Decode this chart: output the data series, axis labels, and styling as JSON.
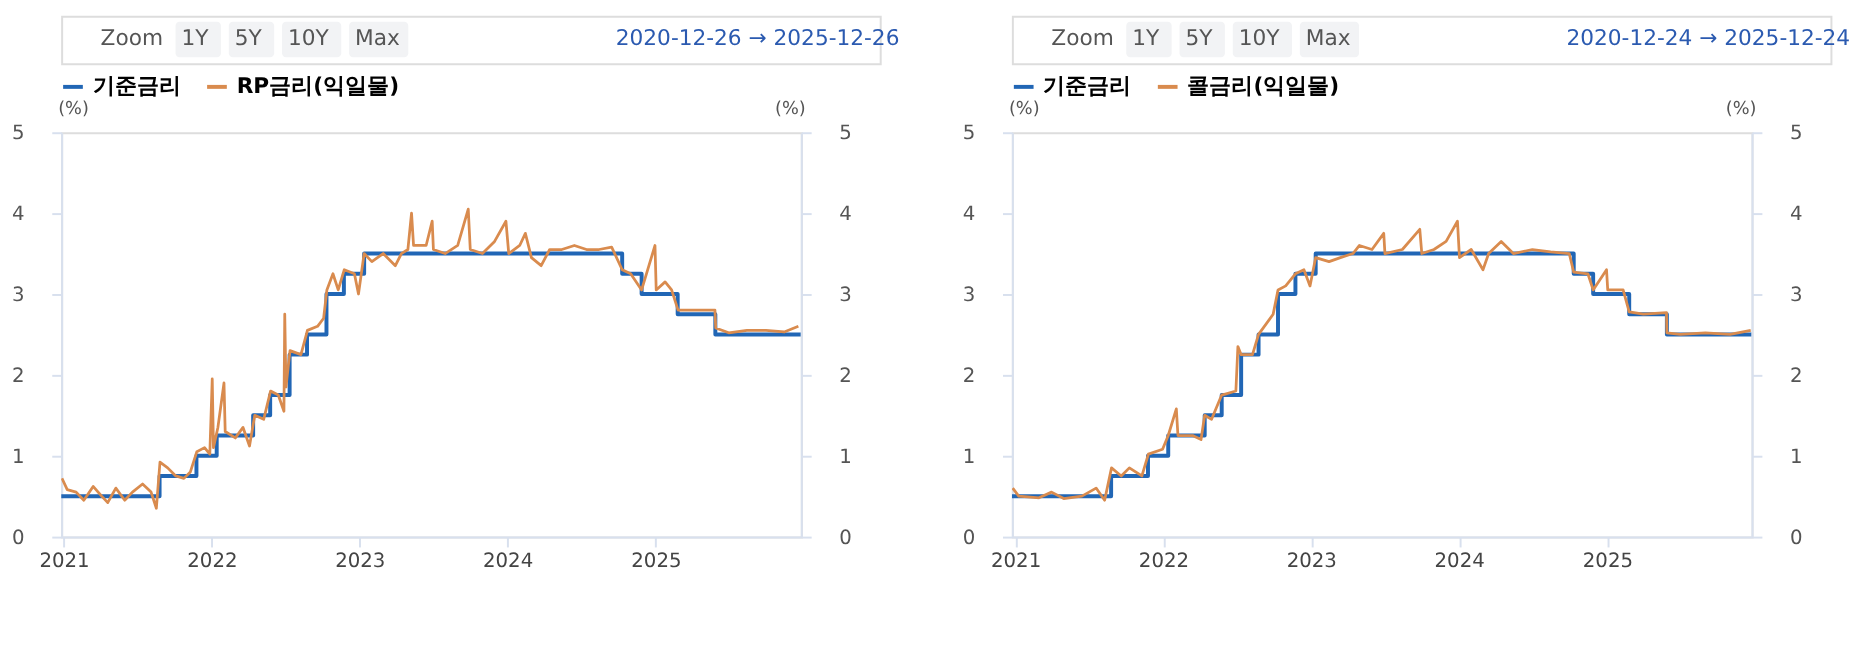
{
  "chart_data": [
    {
      "type": "line",
      "annotations": [
        "Zoom",
        "1Y",
        "5Y",
        "10Y",
        "Max",
        "2020-12-26 → 2025-12-26"
      ],
      "ylabel": "(%)",
      "y2label": "(%)",
      "xlim": [
        "2020-12-26",
        "2025-12-26"
      ],
      "xticks": [
        {
          "value": "2021-01-01",
          "label": "2021"
        },
        {
          "value": "2022-01-01",
          "label": "2022"
        },
        {
          "value": "2023-01-01",
          "label": "2023"
        },
        {
          "value": "2024-01-01",
          "label": "2024"
        },
        {
          "value": "2025-01-01",
          "label": "2025"
        }
      ],
      "ylim": [
        0,
        5
      ],
      "yticks": [
        0,
        1,
        2,
        3,
        4,
        5
      ],
      "y2lim": [
        0,
        5
      ],
      "y2ticks": [
        0,
        1,
        2,
        3,
        4,
        5
      ],
      "grid": false,
      "legend": "top",
      "marker": "none",
      "line_style": "solid",
      "series": [
        {
          "name": "기준금리",
          "type": "step",
          "color": "#2166b5",
          "x": [
            "2020-12-26",
            "2021-08-26",
            "2021-11-25",
            "2022-01-14",
            "2022-04-14",
            "2022-05-26",
            "2022-07-13",
            "2022-08-25",
            "2022-10-12",
            "2022-11-24",
            "2023-01-13",
            "2024-10-11",
            "2024-11-28",
            "2025-02-25",
            "2025-05-29",
            "2025-12-26"
          ],
          "values": [
            0.5,
            0.75,
            1.0,
            1.25,
            1.5,
            1.75,
            2.25,
            2.5,
            3.0,
            3.25,
            3.5,
            3.25,
            3.0,
            2.75,
            2.5,
            2.5
          ]
        },
        {
          "name": "RP금리(익일물)",
          "color": "#d98b4e",
          "x": [
            "2020-12-28",
            "2021-01-10",
            "2021-02-01",
            "2021-02-20",
            "2021-03-15",
            "2021-04-05",
            "2021-04-20",
            "2021-05-10",
            "2021-06-01",
            "2021-06-20",
            "2021-07-15",
            "2021-08-05",
            "2021-08-18",
            "2021-08-27",
            "2021-09-15",
            "2021-10-05",
            "2021-10-25",
            "2021-11-10",
            "2021-11-26",
            "2021-12-15",
            "2021-12-28",
            "2022-01-03",
            "2022-01-06",
            "2022-01-17",
            "2022-02-01",
            "2022-02-04",
            "2022-03-01",
            "2022-03-20",
            "2022-04-05",
            "2022-04-18",
            "2022-05-10",
            "2022-05-27",
            "2022-06-15",
            "2022-06-29",
            "2022-07-01",
            "2022-07-04",
            "2022-07-14",
            "2022-08-10",
            "2022-08-26",
            "2022-09-20",
            "2022-10-05",
            "2022-10-13",
            "2022-10-28",
            "2022-11-10",
            "2022-11-25",
            "2022-12-20",
            "2022-12-30",
            "2023-01-13",
            "2023-02-01",
            "2023-03-01",
            "2023-03-31",
            "2023-04-15",
            "2023-05-01",
            "2023-05-10",
            "2023-05-15",
            "2023-06-15",
            "2023-06-30",
            "2023-07-03",
            "2023-08-01",
            "2023-09-01",
            "2023-09-27",
            "2023-10-02",
            "2023-11-01",
            "2023-12-01",
            "2023-12-29",
            "2024-01-05",
            "2024-02-01",
            "2024-02-15",
            "2024-03-01",
            "2024-03-25",
            "2024-04-15",
            "2024-05-15",
            "2024-06-15",
            "2024-07-15",
            "2024-08-15",
            "2024-09-15",
            "2024-10-11",
            "2024-11-01",
            "2024-11-28",
            "2024-12-31",
            "2025-01-03",
            "2025-01-25",
            "2025-02-10",
            "2025-02-26",
            "2025-04-01",
            "2025-05-28",
            "2025-05-30",
            "2025-07-01",
            "2025-08-15",
            "2025-10-01",
            "2025-11-15",
            "2025-12-20"
          ],
          "values": [
            0.72,
            0.58,
            0.55,
            0.45,
            0.62,
            0.5,
            0.42,
            0.6,
            0.45,
            0.55,
            0.65,
            0.55,
            0.35,
            0.92,
            0.85,
            0.75,
            0.72,
            0.8,
            1.05,
            1.1,
            1.02,
            1.95,
            1.1,
            1.35,
            1.9,
            1.3,
            1.22,
            1.35,
            1.12,
            1.5,
            1.45,
            1.8,
            1.75,
            1.55,
            2.75,
            1.85,
            2.3,
            2.25,
            2.55,
            2.6,
            2.7,
            3.05,
            3.25,
            3.05,
            3.3,
            3.25,
            3.0,
            3.5,
            3.4,
            3.5,
            3.35,
            3.5,
            3.55,
            4.0,
            3.6,
            3.6,
            3.9,
            3.55,
            3.5,
            3.6,
            4.05,
            3.55,
            3.5,
            3.65,
            3.9,
            3.5,
            3.6,
            3.75,
            3.45,
            3.35,
            3.55,
            3.55,
            3.6,
            3.55,
            3.55,
            3.58,
            3.3,
            3.25,
            3.05,
            3.6,
            3.05,
            3.15,
            3.05,
            2.8,
            2.8,
            2.8,
            2.58,
            2.52,
            2.55,
            2.55,
            2.53,
            2.6
          ]
        }
      ]
    },
    {
      "type": "line",
      "annotations": [
        "Zoom",
        "1Y",
        "5Y",
        "10Y",
        "Max",
        "2020-12-24 → 2025-12-24"
      ],
      "ylabel": "(%)",
      "y2label": "(%)",
      "xlim": [
        "2020-12-24",
        "2025-12-24"
      ],
      "xticks": [
        {
          "value": "2021-01-01",
          "label": "2021"
        },
        {
          "value": "2022-01-01",
          "label": "2022"
        },
        {
          "value": "2023-01-01",
          "label": "2023"
        },
        {
          "value": "2024-01-01",
          "label": "2024"
        },
        {
          "value": "2025-01-01",
          "label": "2025"
        }
      ],
      "ylim": [
        0,
        5
      ],
      "yticks": [
        0,
        1,
        2,
        3,
        4,
        5
      ],
      "y2lim": [
        0,
        5
      ],
      "y2ticks": [
        0,
        1,
        2,
        3,
        4,
        5
      ],
      "grid": false,
      "legend": "top",
      "marker": "none",
      "line_style": "solid",
      "series": [
        {
          "name": "기준금리",
          "type": "step",
          "color": "#2166b5",
          "x": [
            "2020-12-24",
            "2021-08-26",
            "2021-11-25",
            "2022-01-14",
            "2022-04-14",
            "2022-05-26",
            "2022-07-13",
            "2022-08-25",
            "2022-10-12",
            "2022-11-24",
            "2023-01-13",
            "2024-10-11",
            "2024-11-28",
            "2025-02-25",
            "2025-05-29",
            "2025-12-24"
          ],
          "values": [
            0.5,
            0.75,
            1.0,
            1.25,
            1.5,
            1.75,
            2.25,
            2.5,
            3.0,
            3.25,
            3.5,
            3.25,
            3.0,
            2.75,
            2.5,
            2.5
          ]
        },
        {
          "name": "콜금리(익일물)",
          "color": "#d98b4e",
          "x": [
            "2020-12-26",
            "2021-01-10",
            "2021-03-01",
            "2021-04-01",
            "2021-05-01",
            "2021-06-15",
            "2021-07-20",
            "2021-08-10",
            "2021-08-27",
            "2021-09-20",
            "2021-10-10",
            "2021-11-10",
            "2021-11-26",
            "2021-12-31",
            "2022-01-14",
            "2022-02-03",
            "2022-02-07",
            "2022-03-15",
            "2022-04-05",
            "2022-04-14",
            "2022-05-01",
            "2022-05-26",
            "2022-06-30",
            "2022-07-05",
            "2022-07-13",
            "2022-08-10",
            "2022-08-25",
            "2022-09-30",
            "2022-10-12",
            "2022-10-31",
            "2022-11-24",
            "2022-12-15",
            "2022-12-30",
            "2023-01-13",
            "2023-02-15",
            "2023-03-15",
            "2023-04-15",
            "2023-05-01",
            "2023-06-01",
            "2023-06-30",
            "2023-07-03",
            "2023-08-15",
            "2023-09-27",
            "2023-10-02",
            "2023-11-01",
            "2023-12-01",
            "2023-12-29",
            "2024-01-03",
            "2024-02-01",
            "2024-03-01",
            "2024-03-15",
            "2024-04-15",
            "2024-05-15",
            "2024-07-01",
            "2024-08-15",
            "2024-09-30",
            "2024-10-11",
            "2024-11-15",
            "2024-11-28",
            "2024-12-31",
            "2025-01-03",
            "2025-02-10",
            "2025-02-25",
            "2025-04-01",
            "2025-05-28",
            "2025-05-29",
            "2025-07-01",
            "2025-09-01",
            "2025-11-01",
            "2025-12-22"
          ],
          "values": [
            0.6,
            0.5,
            0.48,
            0.55,
            0.47,
            0.5,
            0.6,
            0.45,
            0.85,
            0.75,
            0.85,
            0.75,
            1.02,
            1.08,
            1.25,
            1.58,
            1.25,
            1.25,
            1.2,
            1.5,
            1.45,
            1.75,
            1.8,
            2.35,
            2.25,
            2.25,
            2.5,
            2.75,
            3.05,
            3.1,
            3.25,
            3.3,
            3.1,
            3.45,
            3.4,
            3.45,
            3.5,
            3.6,
            3.55,
            3.75,
            3.5,
            3.55,
            3.8,
            3.5,
            3.55,
            3.65,
            3.9,
            3.45,
            3.55,
            3.3,
            3.5,
            3.65,
            3.5,
            3.55,
            3.52,
            3.5,
            3.27,
            3.25,
            3.05,
            3.3,
            3.05,
            3.05,
            2.78,
            2.75,
            2.77,
            2.52,
            2.5,
            2.52,
            2.5,
            2.55
          ]
        }
      ]
    }
  ]
}
